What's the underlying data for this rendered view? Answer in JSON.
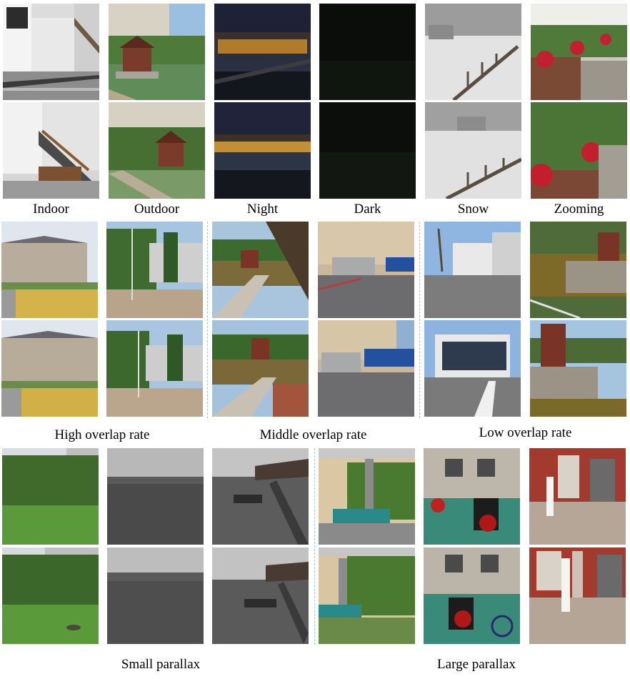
{
  "labels": {
    "indoor": "Indoor",
    "outdoor": "Outdoor",
    "night": "Night",
    "dark": "Dark",
    "snow": "Snow",
    "zooming": "Zooming",
    "high_overlap": "High overlap rate",
    "middle_overlap": "Middle overlap rate",
    "low_overlap": "Low overlap rate",
    "small_parallax": "Small parallax",
    "large_parallax": "Large parallax"
  }
}
